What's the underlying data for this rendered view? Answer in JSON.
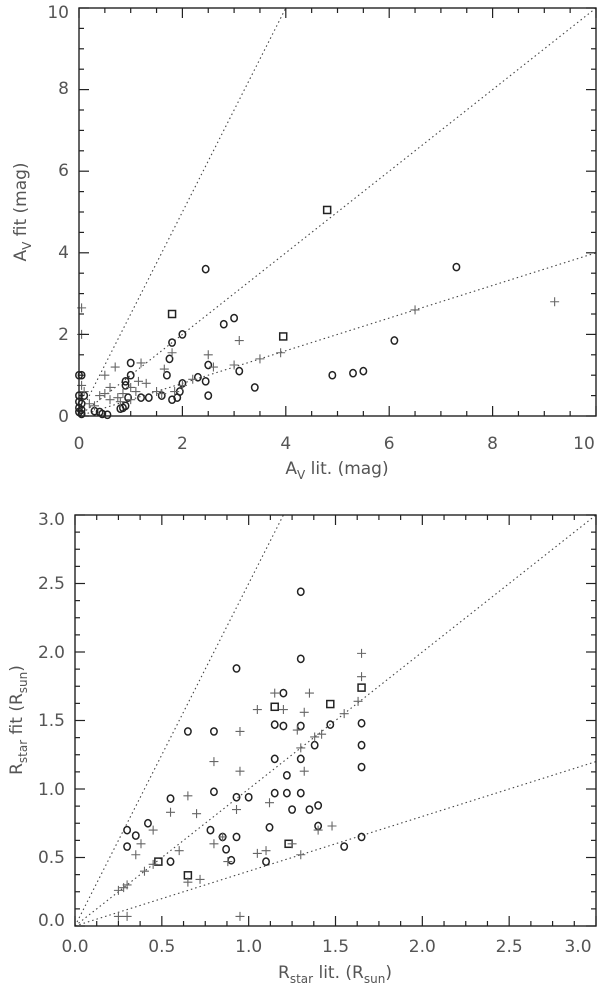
{
  "chart_data": [
    {
      "type": "scatter",
      "xlabel": {
        "base": "A",
        "sub": "V",
        "rest": " lit. (mag)"
      },
      "ylabel": {
        "base": "A",
        "sub": "V",
        "rest": " fit (mag)"
      },
      "xlim": [
        0,
        10
      ],
      "ylim": [
        0,
        10
      ],
      "xticks": [
        0,
        2,
        4,
        6,
        8,
        10
      ],
      "yticks": [
        0,
        2,
        4,
        6,
        8,
        10
      ],
      "xtick_labels": [
        "0",
        "2",
        "4",
        "6",
        "8",
        "10"
      ],
      "ytick_labels": [
        "0",
        "2",
        "4",
        "6",
        "8",
        "10"
      ],
      "reference_lines": [
        {
          "slope": 2.5
        },
        {
          "slope": 1.0
        },
        {
          "slope": 0.4
        }
      ],
      "series": [
        {
          "name": "circles",
          "marker": "circle",
          "points": [
            [
              0.0,
              1.0
            ],
            [
              0.05,
              1.0
            ],
            [
              0.0,
              0.5
            ],
            [
              0.1,
              0.5
            ],
            [
              0.0,
              0.35
            ],
            [
              0.05,
              0.3
            ],
            [
              0.0,
              0.2
            ],
            [
              0.05,
              0.15
            ],
            [
              0.0,
              0.1
            ],
            [
              0.05,
              0.05
            ],
            [
              0.3,
              0.12
            ],
            [
              0.4,
              0.1
            ],
            [
              0.45,
              0.05
            ],
            [
              0.55,
              0.03
            ],
            [
              0.8,
              0.18
            ],
            [
              0.85,
              0.2
            ],
            [
              0.9,
              0.25
            ],
            [
              0.95,
              0.45
            ],
            [
              0.9,
              0.75
            ],
            [
              0.9,
              0.85
            ],
            [
              1.0,
              1.0
            ],
            [
              1.0,
              1.3
            ],
            [
              1.2,
              0.45
            ],
            [
              1.35,
              0.45
            ],
            [
              1.6,
              0.5
            ],
            [
              1.7,
              1.0
            ],
            [
              1.75,
              1.4
            ],
            [
              1.8,
              0.4
            ],
            [
              1.9,
              0.45
            ],
            [
              1.8,
              1.8
            ],
            [
              2.0,
              2.0
            ],
            [
              1.95,
              0.6
            ],
            [
              2.0,
              0.8
            ],
            [
              2.3,
              0.95
            ],
            [
              2.45,
              0.85
            ],
            [
              2.5,
              0.5
            ],
            [
              2.5,
              1.25
            ],
            [
              2.45,
              3.6
            ],
            [
              2.8,
              2.25
            ],
            [
              3.0,
              2.4
            ],
            [
              3.1,
              1.1
            ],
            [
              3.4,
              0.7
            ],
            [
              4.9,
              1.0
            ],
            [
              5.3,
              1.05
            ],
            [
              5.5,
              1.1
            ],
            [
              6.1,
              1.85
            ],
            [
              7.3,
              3.65
            ]
          ]
        },
        {
          "name": "squares",
          "marker": "square",
          "points": [
            [
              1.8,
              2.5
            ],
            [
              3.95,
              1.95
            ],
            [
              4.8,
              5.05
            ]
          ]
        },
        {
          "name": "plus",
          "marker": "plus",
          "points": [
            [
              0.05,
              2.65
            ],
            [
              0.05,
              2.0
            ],
            [
              0.05,
              0.75
            ],
            [
              0.1,
              0.6
            ],
            [
              0.2,
              0.3
            ],
            [
              0.3,
              0.25
            ],
            [
              0.4,
              0.5
            ],
            [
              0.5,
              0.55
            ],
            [
              0.5,
              1.0
            ],
            [
              0.6,
              0.4
            ],
            [
              0.6,
              0.7
            ],
            [
              0.7,
              1.2
            ],
            [
              0.75,
              0.45
            ],
            [
              0.8,
              0.35
            ],
            [
              0.85,
              0.55
            ],
            [
              1.0,
              0.4
            ],
            [
              1.0,
              0.7
            ],
            [
              1.1,
              0.6
            ],
            [
              1.15,
              0.85
            ],
            [
              1.2,
              1.3
            ],
            [
              1.3,
              0.8
            ],
            [
              1.5,
              0.6
            ],
            [
              1.6,
              0.55
            ],
            [
              1.65,
              1.15
            ],
            [
              1.8,
              1.55
            ],
            [
              1.85,
              0.6
            ],
            [
              2.0,
              0.75
            ],
            [
              2.2,
              0.9
            ],
            [
              2.5,
              1.5
            ],
            [
              2.6,
              1.2
            ],
            [
              3.0,
              1.25
            ],
            [
              3.1,
              1.85
            ],
            [
              3.5,
              1.4
            ],
            [
              3.9,
              1.55
            ],
            [
              6.5,
              2.6
            ],
            [
              9.2,
              2.8
            ]
          ]
        }
      ]
    },
    {
      "type": "scatter",
      "xlabel": {
        "base": "R",
        "sub": "star",
        "rest": " lit. (R",
        "sub2": "sun",
        "end": ")"
      },
      "ylabel": {
        "base": "R",
        "sub": "star",
        "rest": " fit (R",
        "sub2": "sun",
        "end": ")"
      },
      "xlim": [
        0,
        3
      ],
      "ylim": [
        0,
        3
      ],
      "xticks": [
        0,
        0.5,
        1,
        1.5,
        2,
        2.5,
        3
      ],
      "yticks": [
        0,
        0.5,
        1,
        1.5,
        2,
        2.5,
        3
      ],
      "xtick_labels": [
        "0.0",
        "0.5",
        "1.0",
        "1.5",
        "2.0",
        "2.5",
        "3.0"
      ],
      "ytick_labels": [
        "0.0",
        "0.5",
        "1.0",
        "1.5",
        "2.0",
        "2.5",
        "3.0"
      ],
      "reference_lines": [
        {
          "slope": 2.5
        },
        {
          "slope": 1.0
        },
        {
          "slope": 0.4
        }
      ],
      "series": [
        {
          "name": "circles",
          "marker": "circle",
          "points": [
            [
              0.3,
              0.58
            ],
            [
              0.3,
              0.7
            ],
            [
              0.35,
              0.66
            ],
            [
              0.42,
              0.75
            ],
            [
              0.55,
              0.93
            ],
            [
              0.55,
              0.47
            ],
            [
              0.65,
              1.42
            ],
            [
              0.78,
              0.7
            ],
            [
              0.8,
              0.98
            ],
            [
              0.8,
              1.42
            ],
            [
              0.85,
              0.65
            ],
            [
              0.87,
              0.56
            ],
            [
              0.9,
              0.48
            ],
            [
              0.93,
              0.65
            ],
            [
              0.93,
              0.94
            ],
            [
              0.93,
              1.88
            ],
            [
              1.0,
              0.94
            ],
            [
              1.1,
              0.47
            ],
            [
              1.12,
              0.72
            ],
            [
              1.15,
              0.97
            ],
            [
              1.15,
              1.22
            ],
            [
              1.15,
              1.47
            ],
            [
              1.2,
              1.7
            ],
            [
              1.2,
              1.46
            ],
            [
              1.22,
              1.1
            ],
            [
              1.22,
              0.97
            ],
            [
              1.25,
              0.85
            ],
            [
              1.3,
              0.97
            ],
            [
              1.3,
              1.22
            ],
            [
              1.3,
              1.46
            ],
            [
              1.3,
              1.95
            ],
            [
              1.3,
              2.44
            ],
            [
              1.35,
              0.85
            ],
            [
              1.38,
              1.32
            ],
            [
              1.4,
              0.88
            ],
            [
              1.4,
              0.73
            ],
            [
              1.47,
              1.47
            ],
            [
              1.55,
              0.58
            ],
            [
              1.65,
              0.65
            ],
            [
              1.65,
              1.16
            ],
            [
              1.65,
              1.32
            ],
            [
              1.65,
              1.48
            ]
          ]
        },
        {
          "name": "squares",
          "marker": "square",
          "points": [
            [
              0.48,
              0.47
            ],
            [
              0.65,
              0.37
            ],
            [
              1.15,
              1.6
            ],
            [
              1.23,
              0.6
            ],
            [
              1.47,
              1.62
            ],
            [
              1.65,
              1.74
            ]
          ]
        },
        {
          "name": "plus",
          "marker": "plus",
          "points": [
            [
              0.25,
              0.07
            ],
            [
              0.3,
              0.07
            ],
            [
              0.25,
              0.26
            ],
            [
              0.28,
              0.28
            ],
            [
              0.3,
              0.3
            ],
            [
              0.35,
              0.52
            ],
            [
              0.38,
              0.6
            ],
            [
              0.4,
              0.4
            ],
            [
              0.45,
              0.45
            ],
            [
              0.45,
              0.7
            ],
            [
              0.55,
              0.83
            ],
            [
              0.6,
              0.55
            ],
            [
              0.65,
              0.95
            ],
            [
              0.65,
              0.32
            ],
            [
              0.7,
              0.82
            ],
            [
              0.72,
              0.34
            ],
            [
              0.8,
              0.6
            ],
            [
              0.8,
              1.2
            ],
            [
              0.85,
              0.65
            ],
            [
              0.88,
              0.47
            ],
            [
              0.93,
              0.85
            ],
            [
              0.95,
              0.07
            ],
            [
              0.95,
              1.13
            ],
            [
              0.95,
              1.42
            ],
            [
              1.05,
              0.53
            ],
            [
              1.05,
              1.58
            ],
            [
              1.1,
              0.55
            ],
            [
              1.12,
              0.9
            ],
            [
              1.15,
              1.7
            ],
            [
              1.2,
              1.58
            ],
            [
              1.25,
              0.6
            ],
            [
              1.28,
              1.43
            ],
            [
              1.3,
              0.52
            ],
            [
              1.3,
              1.3
            ],
            [
              1.32,
              1.56
            ],
            [
              1.32,
              1.13
            ],
            [
              1.35,
              1.7
            ],
            [
              1.38,
              1.38
            ],
            [
              1.4,
              0.7
            ],
            [
              1.42,
              1.4
            ],
            [
              1.48,
              0.73
            ],
            [
              1.55,
              1.55
            ],
            [
              1.63,
              1.64
            ],
            [
              1.65,
              1.82
            ],
            [
              1.65,
              1.99
            ]
          ]
        }
      ]
    }
  ]
}
